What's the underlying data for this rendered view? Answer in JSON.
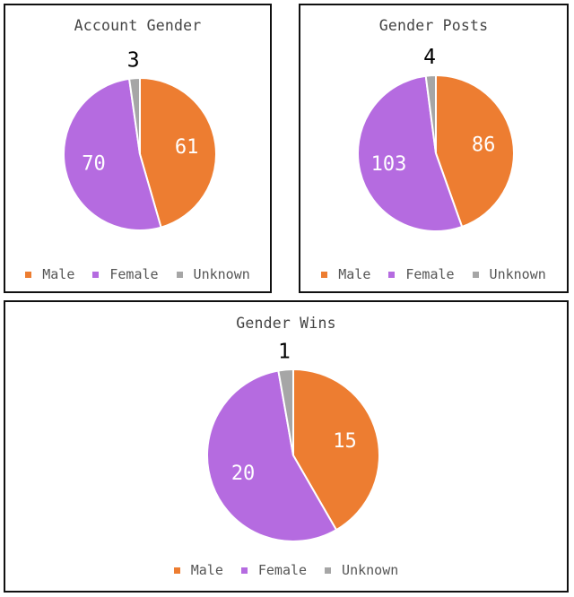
{
  "colors": {
    "male": "#ED7D31",
    "female": "#B56BE0",
    "unknown": "#A6A6A6"
  },
  "chart_data": [
    {
      "type": "pie",
      "title": "Account Gender",
      "categories": [
        "Male",
        "Female",
        "Unknown"
      ],
      "values": [
        61,
        70,
        3
      ],
      "legend_position": "bottom"
    },
    {
      "type": "pie",
      "title": "Gender Posts",
      "categories": [
        "Male",
        "Female",
        "Unknown"
      ],
      "values": [
        86,
        103,
        4
      ],
      "legend_position": "bottom"
    },
    {
      "type": "pie",
      "title": "Gender Wins",
      "categories": [
        "Male",
        "Female",
        "Unknown"
      ],
      "values": [
        15,
        20,
        1
      ],
      "legend_position": "bottom"
    }
  ]
}
